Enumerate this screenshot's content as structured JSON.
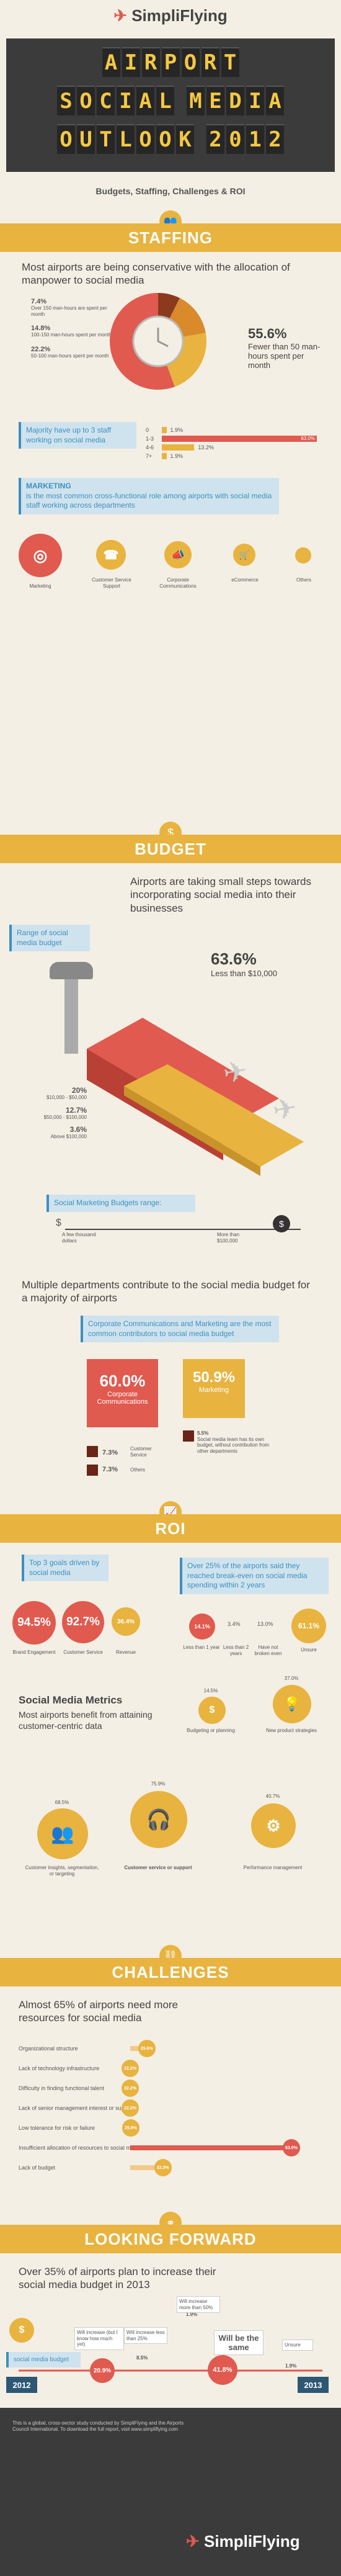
{
  "header": {
    "brand": "SimpliFlying",
    "title_lines": [
      "AIRPORT",
      "SOCIAL MEDIA",
      "OUTLOOK 2012"
    ],
    "subtitle": "Budgets, Staffing, Challenges & ROI"
  },
  "staffing": {
    "section_title": "STAFFING",
    "headline": "Most airports are being conservative with the allocation of manpower to social media",
    "pie": [
      {
        "pct": "7.4%",
        "label": "Over 150 man-hours are spent per month",
        "color": "#8c3a1e"
      },
      {
        "pct": "14.8%",
        "label": "100-150 man-hours spent per month",
        "color": "#d98a2b"
      },
      {
        "pct": "22.2%",
        "label": "50-100 man-hours spent per month",
        "color": "#e8b33f"
      },
      {
        "pct": "55.6%",
        "label": "Fewer than 50 man-hours spent per month",
        "color": "#e05a4f"
      }
    ],
    "big_pct": "55.6%",
    "big_label": "Fewer than 50 man-hours spent per month",
    "team_note": "Majority have up to 3 staff working on social media",
    "team_bars": [
      {
        "label": "0",
        "pct": "1.9%",
        "value": 1.9
      },
      {
        "label": "1-3",
        "pct": "63.0%",
        "value": 63.0
      },
      {
        "label": "4-6",
        "pct": "13.2%",
        "value": 13.2
      },
      {
        "label": "7+",
        "pct": "1.9%",
        "value": 1.9
      }
    ],
    "marketing_box_title": "MARKETING",
    "marketing_box_text": "is the most common cross-functional role among airports with social media staff working across departments",
    "departments": [
      "Marketing",
      "Customer Service Support",
      "Corporate Communications",
      "eCommerce",
      "Others"
    ]
  },
  "budget": {
    "section_title": "BUDGET",
    "headline": "Airports are taking small steps towards incorporating social media into their businesses",
    "range_label": "Range of social media budget",
    "big_pct": "63.6%",
    "big_label": "Less than $10,000",
    "tiers": [
      {
        "pct": "20%",
        "label": "$10,000 - $50,000"
      },
      {
        "pct": "12.7%",
        "label": "$50,000 - $100,000"
      },
      {
        "pct": "3.6%",
        "label": "Above $100,000"
      }
    ],
    "range_title": "Social Marketing Budgets range:",
    "range_low": "A few thousand dollars",
    "range_high": "More than $100,000",
    "dept_headline": "Multiple departments contribute to the social media budget for a majority of airports",
    "dept_box": "Corporate Communications and Marketing are the most common contributors to social media budget",
    "corp_pct": "60.0%",
    "corp_label": "Corporate Communications",
    "mkt_pct": "50.9%",
    "mkt_label": "Marketing",
    "cust_pct": "7.3%",
    "cust_label": "Customer Service",
    "others_pct": "7.3%",
    "others_label": "Others",
    "own_pct": "5.5%",
    "own_label": "Social media team has its own budget, without contribution from other departments"
  },
  "roi": {
    "section_title": "ROI",
    "goals_box": "Top 3 goals driven by social media",
    "goals": [
      {
        "pct": "94.5%",
        "label": "Brand Engagement"
      },
      {
        "pct": "92.7%",
        "label": "Customer Service"
      },
      {
        "pct": "36.4%",
        "label": "Revenue"
      }
    ],
    "breakeven_box": "Over 25% of the airports said they reached break-even on social media spending within 2 years",
    "breakeven": [
      {
        "pct": "14.1%",
        "label": "Less than 1 year"
      },
      {
        "pct": "3.4%",
        "label": "Less than 2 years"
      },
      {
        "pct": "13.0%",
        "label": "Have not broken even"
      },
      {
        "pct": "61.1%",
        "label": "Unsure"
      }
    ],
    "metrics_title": "Social Media Metrics",
    "metrics_sub": "Most airports benefit from attaining customer-centric data",
    "metrics": [
      {
        "pct": "14.5%",
        "label": "Budgeting or planning"
      },
      {
        "pct": "37.0%",
        "label": "New product strategies"
      },
      {
        "pct": "68.5%",
        "label": "Customer insights, segmentation, or targeting"
      },
      {
        "pct": "75.9%",
        "label": "Customer service or support"
      },
      {
        "pct": "40.7%",
        "label": "Performance management"
      }
    ]
  },
  "challenges": {
    "section_title": "CHALLENGES",
    "headline": "Almost 65% of airports need more resources for social media",
    "items": [
      {
        "label": "Organizational structure",
        "pct": "29.6%",
        "value": 29.6
      },
      {
        "label": "Lack of technology infrastructure",
        "pct": "22.2%",
        "value": 22.2
      },
      {
        "label": "Difficulty in finding functional talent",
        "pct": "22.2%",
        "value": 22.2
      },
      {
        "label": "Lack of senior management interest or support",
        "pct": "22.2%",
        "value": 22.2
      },
      {
        "label": "Low tolerance for risk or failure",
        "pct": "25.9%",
        "value": 25.9
      },
      {
        "label": "Insufficient allocation of resources to social media",
        "pct": "63.0%",
        "value": 63.0
      },
      {
        "label": "Lack of budget",
        "pct": "33.3%",
        "value": 33.3
      }
    ]
  },
  "forward": {
    "section_title": "LOOKING FORWARD",
    "headline": "Over 35% of airports plan to increase their social media budget in 2013",
    "budget_label": "social media budget",
    "year_start": "2012",
    "year_end": "2013",
    "points": [
      {
        "pct": "20.9%",
        "label": "Will increase (but I know how much yet)"
      },
      {
        "pct": "8.5%",
        "label": "Will increase less than 25%"
      },
      {
        "pct": "1.9%",
        "label": "Will increase more than 50%"
      },
      {
        "pct": "41.8%",
        "label": "Will be the same"
      },
      {
        "pct": "1.9%",
        "label": "Unsure"
      }
    ]
  },
  "footer": {
    "brand": "SimpliFlying",
    "note": "This is a global, cross-sector study conducted by SimpliFlying and the Airports Council International. To download the full report, visit www.simpliflying.com"
  }
}
